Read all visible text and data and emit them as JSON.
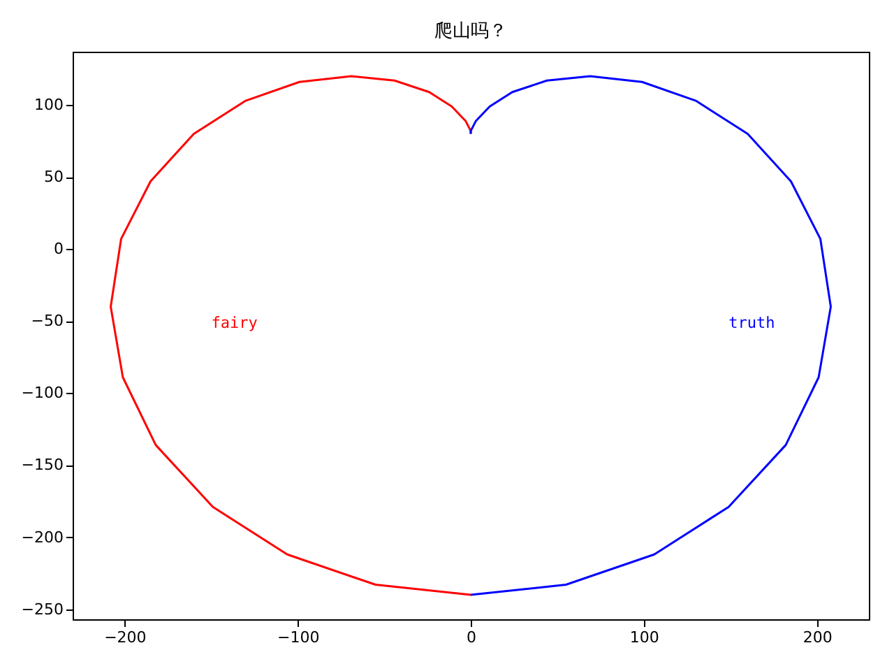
{
  "chart_data": {
    "type": "line",
    "title": "爬山吗？",
    "xlim": [
      -230,
      230
    ],
    "xticks": [
      -200,
      -100,
      0,
      100,
      200
    ],
    "ylim": [
      -257,
      137
    ],
    "yticks": [
      -250,
      -200,
      -150,
      -100,
      -50,
      0,
      50,
      100
    ],
    "grid": false,
    "legend": false,
    "marker": "none",
    "line_style": "solid",
    "series": [
      {
        "name": "fairy",
        "color": "#ff0000",
        "x": [
          0,
          0,
          -3,
          -11,
          -24,
          -44,
          -69,
          -99,
          -130,
          -160,
          -185,
          -202,
          -208,
          -201,
          -182,
          -149,
          -106,
          -55,
          0
        ],
        "values": [
          80,
          82,
          89,
          99,
          109,
          117,
          120,
          116,
          103,
          80,
          47,
          7,
          -40,
          -89,
          -136,
          -179,
          -212,
          -233,
          -240
        ]
      },
      {
        "name": "truth",
        "color": "#0000ff",
        "x": [
          0,
          0,
          3,
          11,
          24,
          44,
          69,
          99,
          130,
          160,
          185,
          202,
          208,
          201,
          182,
          149,
          106,
          55,
          0
        ],
        "values": [
          80,
          82,
          89,
          99,
          109,
          117,
          120,
          116,
          103,
          80,
          47,
          7,
          -40,
          -89,
          -136,
          -179,
          -212,
          -233,
          -240
        ]
      }
    ]
  }
}
